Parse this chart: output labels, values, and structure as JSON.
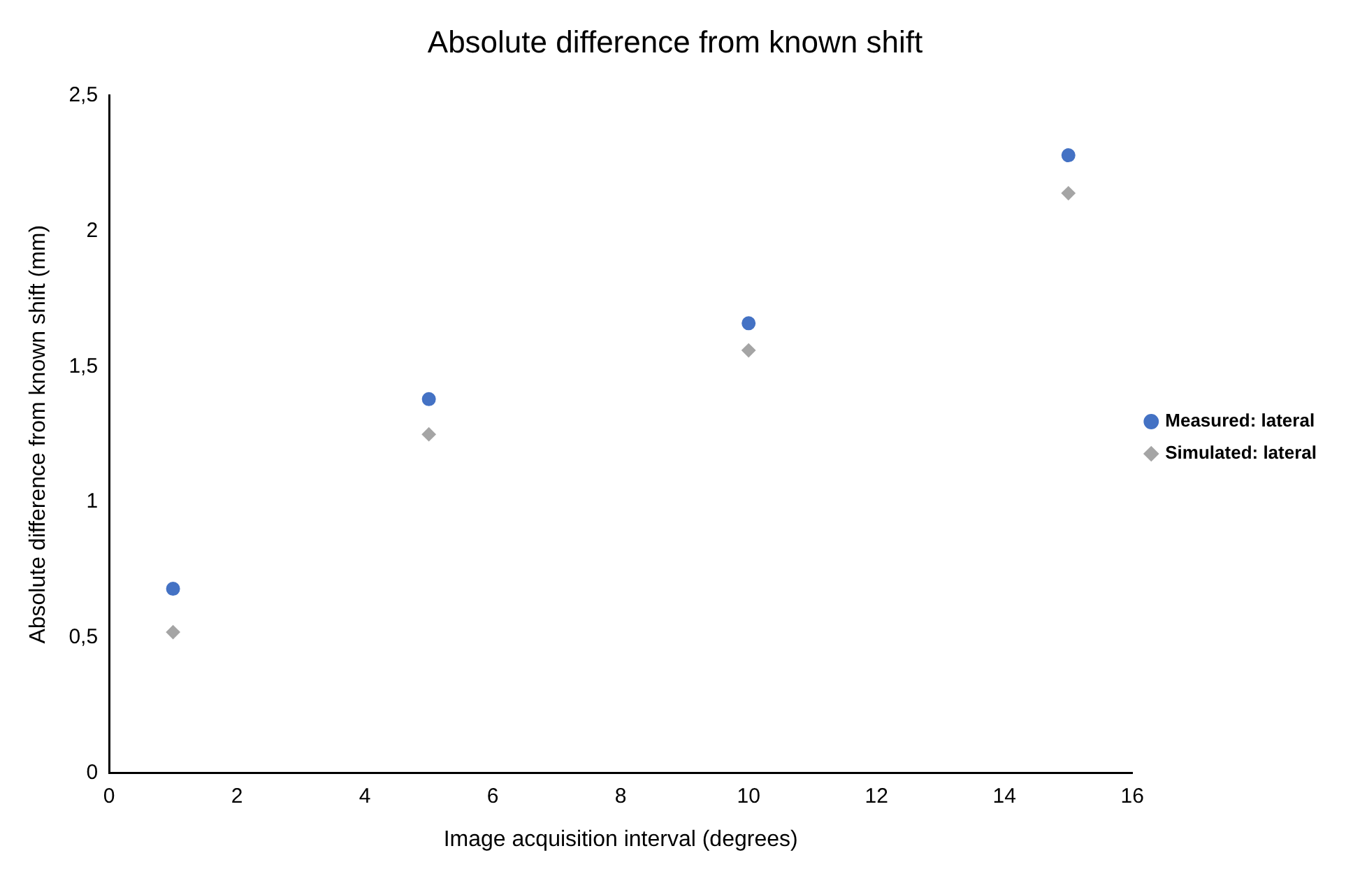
{
  "chart_data": {
    "type": "scatter",
    "title": "Absolute difference from known shift",
    "xlabel": "Image acquisition interval (degrees)",
    "ylabel": "Absolute difference from known shift (mm)",
    "x": [
      1,
      5,
      10,
      15
    ],
    "series": [
      {
        "name": "Measured: lateral",
        "color": "#4472c4",
        "marker": "circle",
        "values": [
          0.68,
          1.38,
          1.66,
          2.28
        ]
      },
      {
        "name": "Simulated: lateral",
        "color": "#a5a5a5",
        "marker": "diamond",
        "values": [
          0.52,
          1.25,
          1.56,
          2.14
        ]
      }
    ],
    "xlim": [
      0,
      16
    ],
    "xticks": [
      0,
      2,
      4,
      6,
      8,
      10,
      12,
      14,
      16
    ],
    "ylim": [
      0,
      2.5
    ],
    "yticks": [
      0,
      {
        "value": 0.5,
        "label": "0,5"
      },
      1,
      {
        "value": 1.5,
        "label": "1,5"
      },
      2,
      {
        "value": 2.5,
        "label": "2,5"
      }
    ],
    "grid": false,
    "legend": "right"
  }
}
